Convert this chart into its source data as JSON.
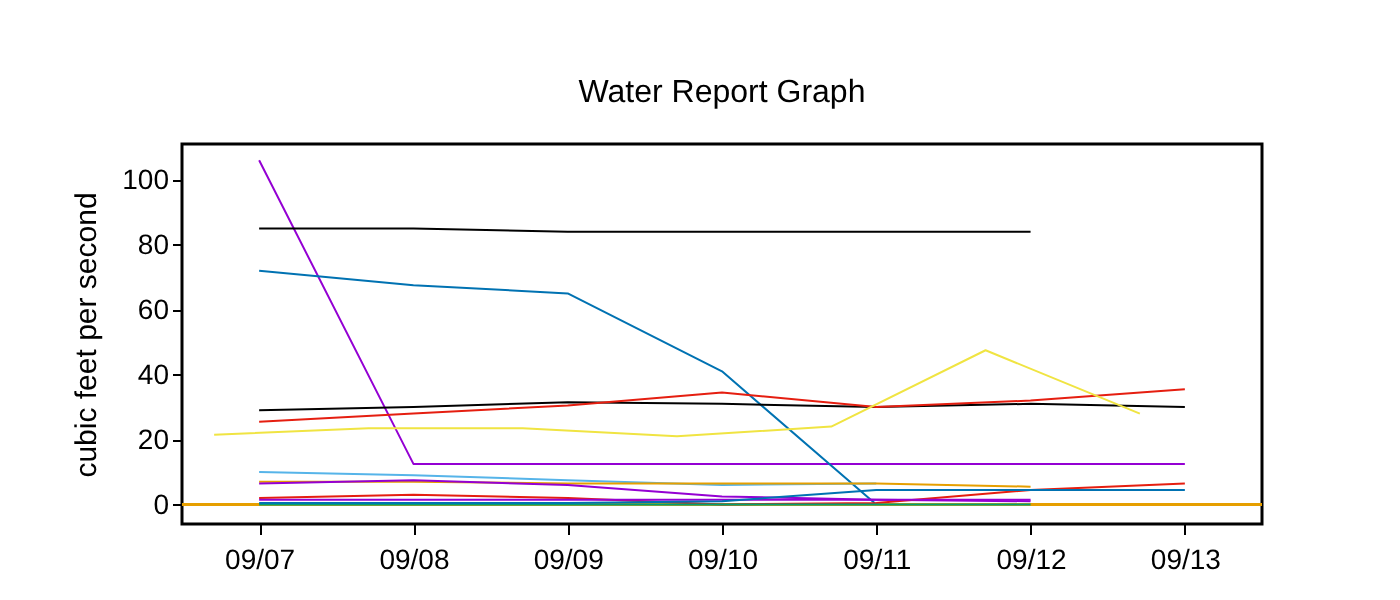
{
  "chart_data": {
    "type": "line",
    "title": "Water Report Graph",
    "ylabel": "cubic feet per second",
    "x": [
      "--09-07",
      "--09-08",
      "--09-09",
      "--09-10",
      "--09-11",
      "--09-12",
      "--09-13"
    ],
    "xlim": [
      "--09-06T12:00",
      "--09-13T12:00"
    ],
    "xticks": [
      {
        "value": "--09-07",
        "label": "09/07"
      },
      {
        "value": "--09-08",
        "label": "09/08"
      },
      {
        "value": "--09-09",
        "label": "09/09"
      },
      {
        "value": "--09-10",
        "label": "09/10"
      },
      {
        "value": "--09-11",
        "label": "09/11"
      },
      {
        "value": "--09-12",
        "label": "09/12"
      },
      {
        "value": "--09-13",
        "label": "09/13"
      }
    ],
    "ylim": [
      -6,
      111
    ],
    "yticks": [
      0,
      20,
      40,
      60,
      80,
      100
    ],
    "grid": false,
    "legend": false,
    "ref_lines": [
      {
        "axis": "y",
        "value": 0,
        "color": "#e69f00"
      }
    ],
    "series": [
      {
        "color": "#9400d3",
        "values": [
          106,
          12.5,
          12.5,
          12.5,
          12.5,
          12.5,
          12.5
        ]
      },
      {
        "color": "#000000",
        "values": [
          85,
          85,
          84,
          84,
          84,
          84,
          null
        ]
      },
      {
        "color": "#0072b2",
        "values": [
          72,
          67.5,
          65,
          41,
          0,
          null,
          null
        ]
      },
      {
        "color": "#000000",
        "values": [
          29,
          30,
          31.5,
          31,
          30,
          31,
          30
        ]
      },
      {
        "color": "#e51e10",
        "values": [
          25.5,
          28,
          30.5,
          34.5,
          30,
          32,
          35.5
        ]
      },
      {
        "color": "#f0e442",
        "x": [
          "--09-06T17:00",
          "--09-07T17:00",
          "--09-08T17:00",
          "--09-09T17:00",
          "--09-10T17:00",
          "--09-11T17:00",
          "--09-12T17:00"
        ],
        "values": [
          21.5,
          23.5,
          23.5,
          21,
          24,
          47.5,
          28
        ]
      },
      {
        "color": "#56b4e9",
        "values": [
          10,
          9,
          7.5,
          6,
          6.5,
          null,
          null
        ]
      },
      {
        "color": "#e69f00",
        "values": [
          7,
          7,
          6.5,
          6.5,
          6.5,
          5.5,
          null
        ]
      },
      {
        "color": "#9400d3",
        "values": [
          6.5,
          7.5,
          6,
          2.5,
          1.5,
          1,
          null
        ]
      },
      {
        "color": "#e51e10",
        "values": [
          2,
          3,
          2,
          0,
          0.5,
          4.5,
          6.5
        ]
      },
      {
        "color": "#9400d3",
        "values": [
          1.5,
          1.5,
          1.5,
          1.5,
          1.5,
          1.5,
          null
        ]
      },
      {
        "color": "#009e73",
        "values": [
          0,
          0,
          0,
          0,
          0,
          0,
          null
        ]
      },
      {
        "color": "#0072b2",
        "values": [
          0.5,
          0.5,
          0.5,
          1,
          4.5,
          4.5,
          4.5
        ]
      }
    ]
  }
}
